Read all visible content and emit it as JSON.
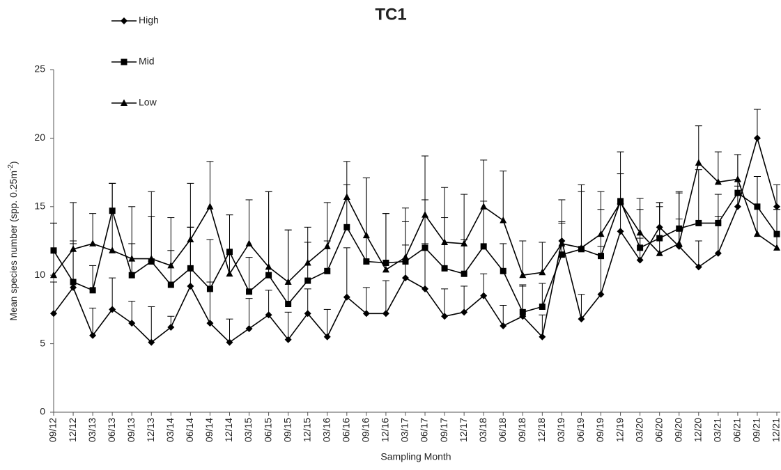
{
  "chart_data": {
    "type": "line",
    "title": "TC1",
    "xlabel": "Sampling Month",
    "ylabel": "Mean species number (spp. 0.25m",
    "ylabel_sup": "-2",
    "ylabel_end": ")",
    "categories": [
      "09/12",
      "12/12",
      "03/13",
      "06/13",
      "09/13",
      "12/13",
      "03/14",
      "06/14",
      "09/14",
      "12/14",
      "03/15",
      "06/15",
      "09/15",
      "12/15",
      "03/16",
      "06/16",
      "09/16",
      "12/16",
      "03/17",
      "06/17",
      "09/17",
      "12/17",
      "03/18",
      "06/18",
      "09/18",
      "12/18",
      "03/19",
      "06/19",
      "09/19",
      "12/19",
      "03/20",
      "06/20",
      "09/20",
      "12/20",
      "03/21",
      "06/21",
      "09/21",
      "12/21"
    ],
    "series": [
      {
        "name": "High",
        "color": "#000000",
        "marker": "diamond",
        "values": [
          7.2,
          9.1,
          5.6,
          7.5,
          6.5,
          5.1,
          6.2,
          9.2,
          6.5,
          5.1,
          6.1,
          7.1,
          5.3,
          7.2,
          5.5,
          8.4,
          7.2,
          7.2,
          9.8,
          9.0,
          7.0,
          7.3,
          8.5,
          6.3,
          7.0,
          5.5,
          12.5,
          6.8,
          8.6,
          13.2,
          11.1,
          13.5,
          12.1,
          10.6,
          11.6,
          15.0,
          20.0,
          15.0
        ],
        "errors": [
          2.3,
          3.2,
          2.0,
          2.3,
          1.6,
          2.6,
          0.8,
          4.3,
          3.0,
          1.7,
          2.2,
          1.8,
          2.0,
          1.8,
          2.0,
          3.6,
          1.9,
          2.4,
          2.4,
          3.3,
          2.0,
          1.9,
          1.6,
          1.5,
          2.3,
          1.6,
          1.3,
          1.8,
          3.5,
          2.0,
          1.6,
          1.8,
          2.0,
          1.9,
          2.7,
          1.5,
          2.1,
          1.6
        ]
      },
      {
        "name": "Mid",
        "color": "#000000",
        "marker": "square",
        "values": [
          11.8,
          9.5,
          8.9,
          14.7,
          10.0,
          11.0,
          9.3,
          10.5,
          9.0,
          11.7,
          8.8,
          10.0,
          7.9,
          9.6,
          10.3,
          13.5,
          11.0,
          10.9,
          11.0,
          12.0,
          10.5,
          10.1,
          12.1,
          10.3,
          7.3,
          7.7,
          11.5,
          11.9,
          11.4,
          15.4,
          12.0,
          12.7,
          13.4,
          13.8,
          13.8,
          16.0,
          15.0,
          13.0
        ],
        "errors": [
          2.0,
          3.0,
          1.8,
          2.0,
          2.3,
          3.3,
          2.5,
          3.0,
          3.6,
          2.7,
          2.5,
          6.1,
          5.4,
          2.8,
          2.2,
          3.1,
          6.1,
          3.6,
          2.9,
          3.5,
          3.7,
          2.5,
          3.3,
          2.0,
          1.9,
          1.7,
          2.4,
          4.2,
          3.4,
          2.0,
          2.8,
          2.6,
          2.7,
          3.9,
          2.1,
          2.8,
          2.2,
          1.8
        ]
      },
      {
        "name": "Low",
        "color": "#000000",
        "marker": "triangle",
        "values": [
          10.0,
          11.9,
          12.3,
          11.8,
          11.2,
          11.2,
          10.7,
          12.6,
          15.0,
          10.1,
          12.3,
          10.6,
          9.5,
          10.9,
          12.1,
          15.7,
          12.9,
          10.4,
          11.3,
          14.4,
          12.4,
          12.3,
          15.0,
          14.0,
          10.0,
          10.2,
          12.3,
          12.0,
          13.0,
          15.3,
          13.1,
          11.6,
          12.3,
          18.2,
          16.8,
          17.0,
          13.0,
          12.0
        ],
        "errors": [
          3.8,
          3.4,
          2.2,
          4.9,
          3.8,
          4.9,
          3.5,
          4.1,
          3.3,
          4.3,
          3.2,
          5.5,
          3.8,
          2.6,
          3.2,
          2.6,
          4.2,
          4.1,
          3.6,
          4.3,
          4.0,
          3.6,
          3.4,
          3.6,
          2.5,
          2.2,
          3.2,
          4.6,
          3.1,
          3.7,
          2.5,
          3.4,
          3.7,
          2.7,
          2.2,
          1.8,
          4.2,
          2.8
        ]
      }
    ],
    "ylim": [
      0,
      25
    ],
    "yticks": [
      0,
      5,
      10,
      15,
      20,
      25
    ],
    "grid": false,
    "legend": "top-left"
  }
}
